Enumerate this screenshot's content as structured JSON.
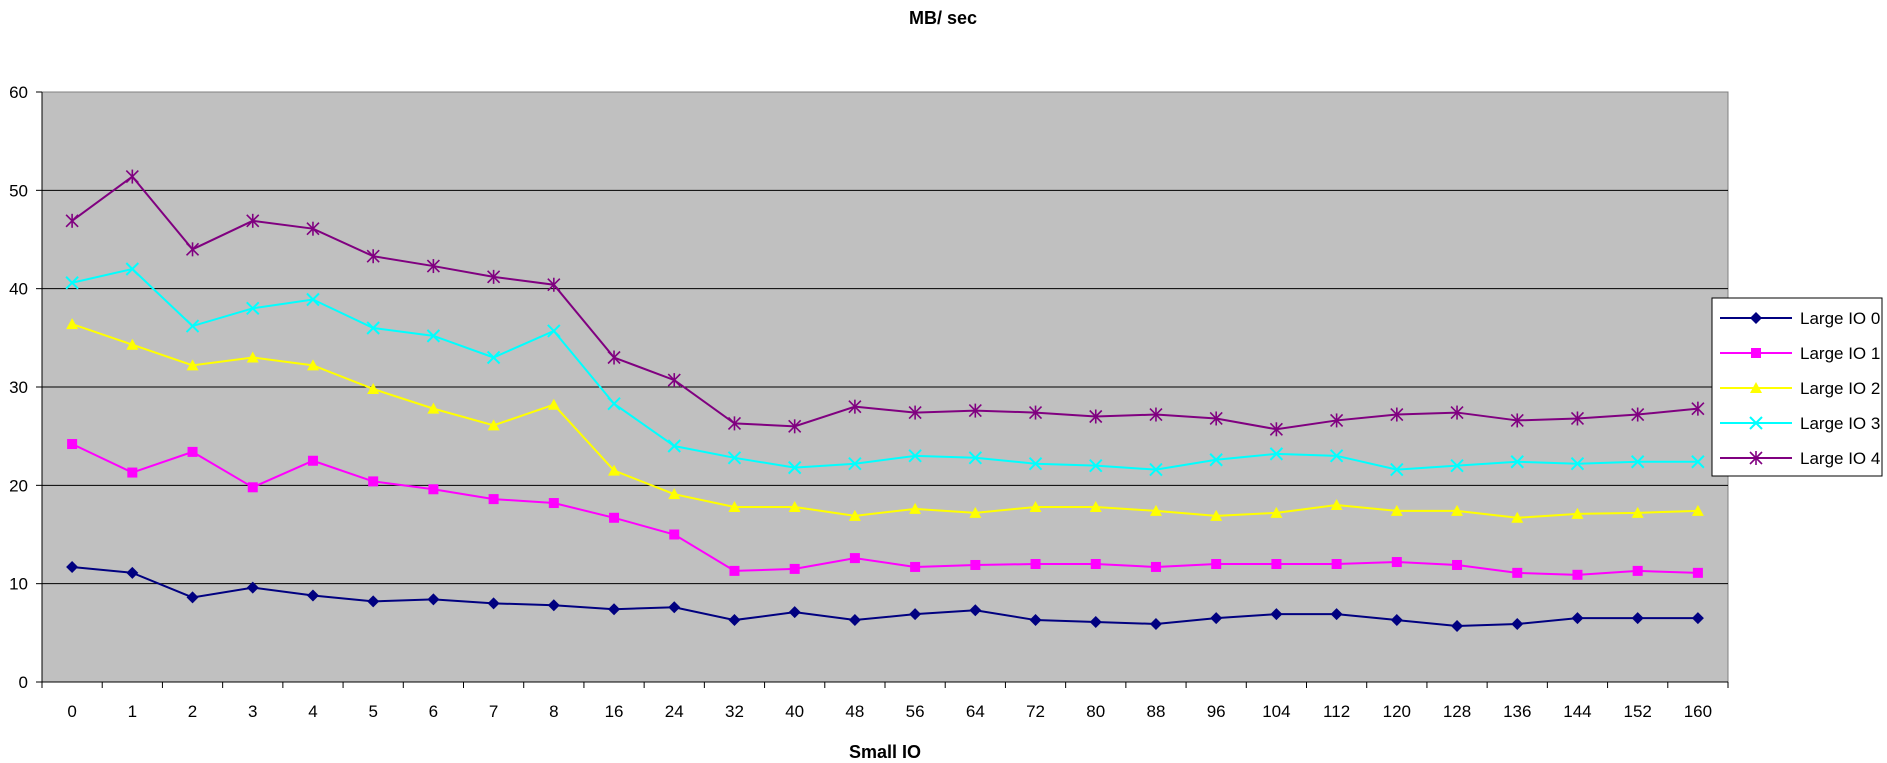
{
  "chart_data": {
    "type": "line",
    "title": "MB/ sec",
    "xlabel": "Small IO",
    "ylabel": "",
    "ylim": [
      0,
      60
    ],
    "yticks": [
      "0",
      "10",
      "20",
      "30",
      "40",
      "50",
      "60"
    ],
    "categories": [
      "0",
      "1",
      "2",
      "3",
      "4",
      "5",
      "6",
      "7",
      "8",
      "16",
      "24",
      "32",
      "40",
      "48",
      "56",
      "64",
      "72",
      "80",
      "88",
      "96",
      "104",
      "112",
      "120",
      "128",
      "136",
      "144",
      "152",
      "160"
    ],
    "grid": true,
    "plot_background": "#c0c0c0",
    "legend_position": "right",
    "series": [
      {
        "name": "Large IO 0",
        "color": "#000080",
        "marker": "diamond",
        "values": [
          11.7,
          11.1,
          8.6,
          9.6,
          8.8,
          8.2,
          8.4,
          8.0,
          7.8,
          7.4,
          7.6,
          6.3,
          7.1,
          6.3,
          6.9,
          7.3,
          6.3,
          6.1,
          5.9,
          6.5,
          6.9,
          6.9,
          6.3,
          5.7,
          5.9,
          6.5,
          6.5,
          6.5
        ]
      },
      {
        "name": "Large IO 1",
        "color": "#ff00ff",
        "marker": "square",
        "values": [
          24.2,
          21.3,
          23.4,
          19.8,
          22.5,
          20.4,
          19.6,
          18.6,
          18.2,
          16.7,
          15.0,
          11.3,
          11.5,
          12.6,
          11.7,
          11.9,
          12.0,
          12.0,
          11.7,
          12.0,
          12.0,
          12.0,
          12.2,
          11.9,
          11.1,
          10.9,
          11.3,
          11.1
        ]
      },
      {
        "name": "Large IO 2",
        "color": "#ffff00",
        "marker": "triangle",
        "values": [
          36.4,
          34.3,
          32.2,
          33.0,
          32.2,
          29.8,
          27.8,
          26.1,
          28.2,
          21.5,
          19.1,
          17.8,
          17.8,
          16.9,
          17.6,
          17.2,
          17.8,
          17.8,
          17.4,
          16.9,
          17.2,
          18.0,
          17.4,
          17.4,
          16.7,
          17.1,
          17.2,
          17.4
        ]
      },
      {
        "name": "Large IO 3",
        "color": "#00ffff",
        "marker": "x",
        "values": [
          40.6,
          42.0,
          36.2,
          38.0,
          38.9,
          36.0,
          35.2,
          33.0,
          35.7,
          28.3,
          24.0,
          22.8,
          21.8,
          22.2,
          23.0,
          22.8,
          22.2,
          22.0,
          21.6,
          22.6,
          23.2,
          23.0,
          21.6,
          22.0,
          22.4,
          22.2,
          22.4,
          22.4
        ]
      },
      {
        "name": "Large IO 4",
        "color": "#800080",
        "marker": "star",
        "values": [
          46.9,
          51.4,
          44.0,
          46.9,
          46.1,
          43.3,
          42.3,
          41.2,
          40.4,
          33.0,
          30.7,
          26.3,
          26.0,
          28.0,
          27.4,
          27.6,
          27.4,
          27.0,
          27.2,
          26.8,
          25.7,
          26.6,
          27.2,
          27.4,
          26.6,
          26.8,
          27.2,
          27.8
        ]
      }
    ]
  }
}
